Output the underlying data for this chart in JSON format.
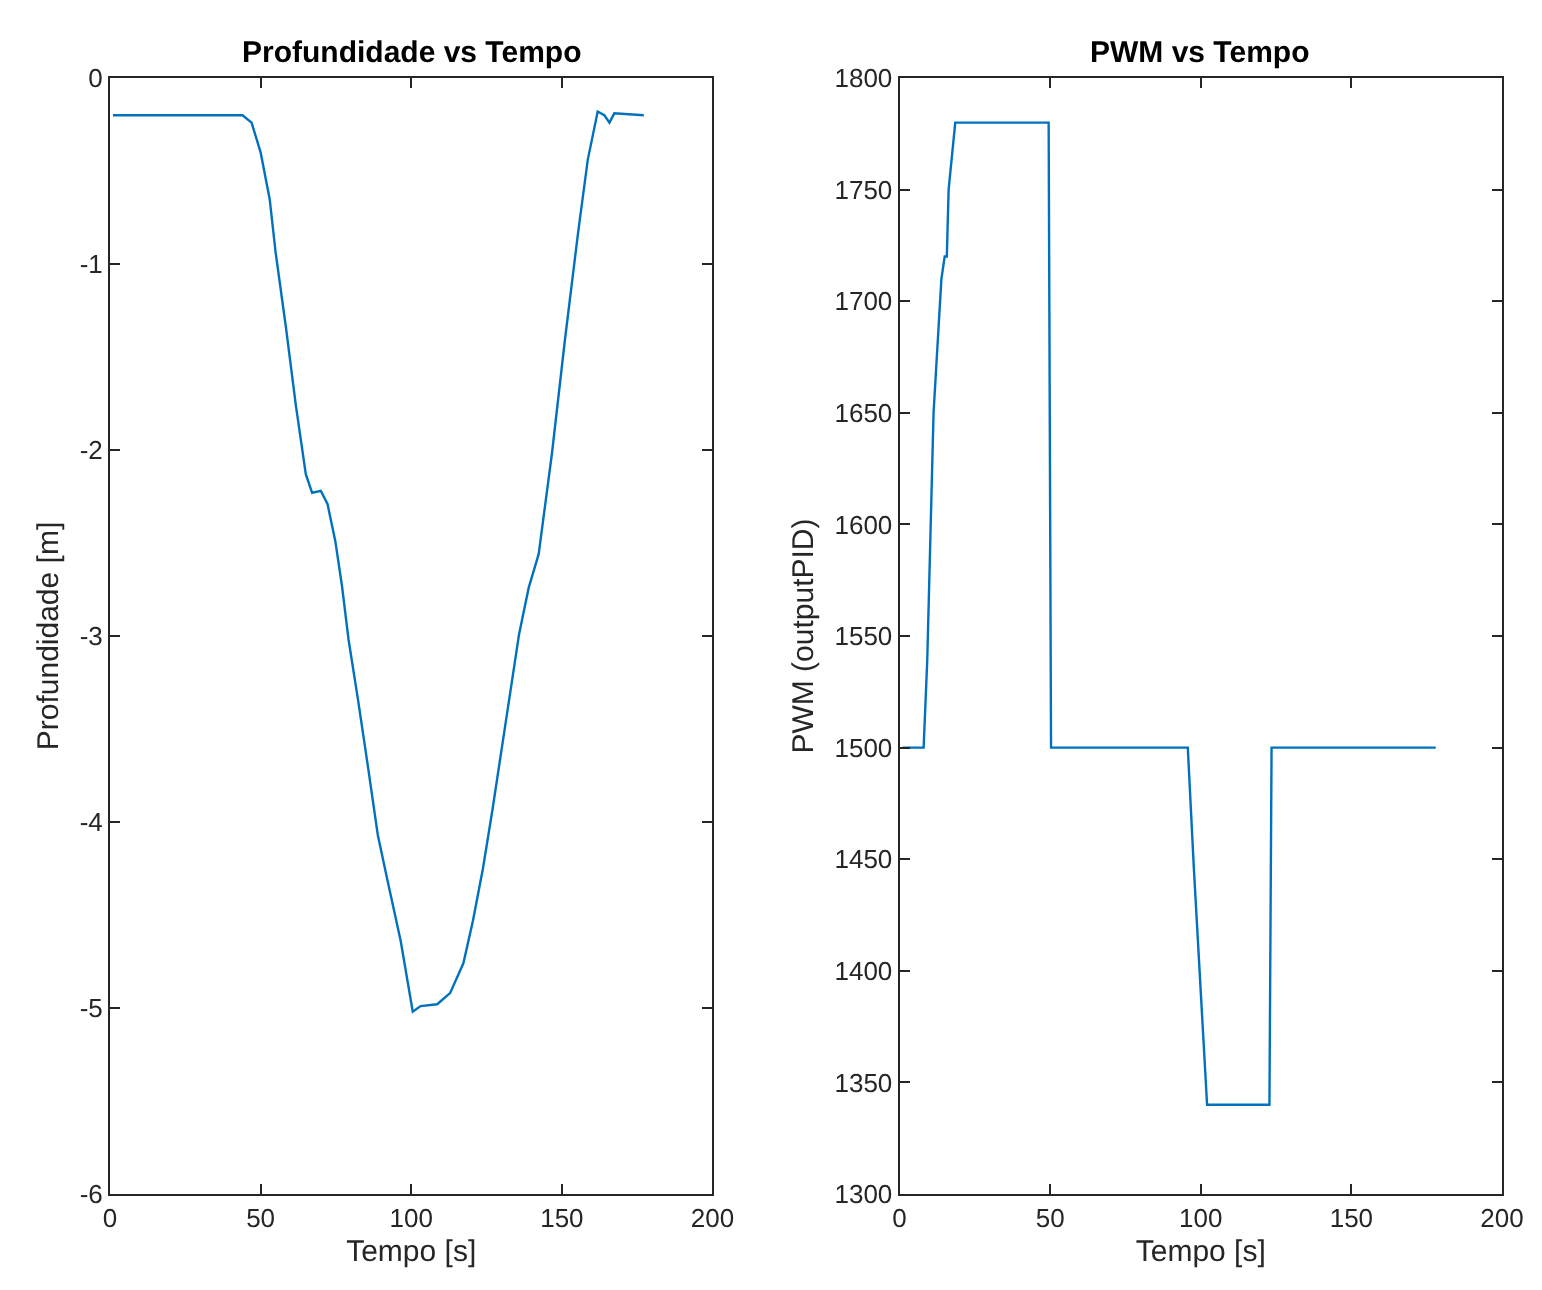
{
  "chart_data": [
    {
      "type": "line",
      "title": "Profundidade vs Tempo",
      "xlabel": "Tempo [s]",
      "ylabel": "Profundidade [m]",
      "color": "#0072bd",
      "xlim": [
        0,
        200
      ],
      "ylim": [
        -6,
        0
      ],
      "xticks": [
        0,
        50,
        100,
        150,
        200
      ],
      "yticks": [
        -6,
        -5,
        -4,
        -3,
        -2,
        -1,
        0
      ],
      "x": [
        1,
        44,
        47,
        50,
        53,
        55,
        58.4,
        61.7,
        65,
        67.1,
        70,
        72.2,
        74.8,
        77,
        79.2,
        82.4,
        85.7,
        88.9,
        92.2,
        96.5,
        100.5,
        103.1,
        108.6,
        112.9,
        117.3,
        120.5,
        123.8,
        127,
        131.4,
        135.8,
        139,
        142.3,
        146.7,
        151,
        155.4,
        158.6,
        161.9,
        164.1,
        165.8,
        167.4,
        177.2
      ],
      "values": [
        -0.2,
        -0.2,
        -0.24,
        -0.4,
        -0.65,
        -0.94,
        -1.34,
        -1.76,
        -2.13,
        -2.23,
        -2.22,
        -2.29,
        -2.49,
        -2.73,
        -3.02,
        -3.35,
        -3.71,
        -4.07,
        -4.32,
        -4.64,
        -5.02,
        -4.99,
        -4.98,
        -4.92,
        -4.76,
        -4.53,
        -4.25,
        -3.93,
        -3.46,
        -2.99,
        -2.74,
        -2.56,
        -2.02,
        -1.41,
        -0.83,
        -0.44,
        -0.18,
        -0.2,
        -0.24,
        -0.19,
        -0.2
      ]
    },
    {
      "type": "line",
      "title": "PWM vs Tempo",
      "xlabel": "Tempo [s]",
      "ylabel": "PWM (outputPID)",
      "color": "#0072bd",
      "xlim": [
        0,
        200
      ],
      "ylim": [
        1300,
        1800
      ],
      "xticks": [
        0,
        50,
        100,
        150,
        200
      ],
      "yticks": [
        1300,
        1350,
        1400,
        1450,
        1500,
        1550,
        1600,
        1650,
        1700,
        1750,
        1800
      ],
      "x": [
        1,
        8,
        9.2,
        11.3,
        13.9,
        15,
        15.7,
        16.3,
        18.5,
        49.5,
        50.3,
        95.7,
        97.7,
        102.1,
        122.8,
        123.5,
        178
      ],
      "values": [
        1500,
        1500,
        1539,
        1650,
        1710,
        1720,
        1720,
        1750,
        1780,
        1780,
        1500,
        1500,
        1446,
        1340,
        1340,
        1500,
        1500
      ]
    }
  ]
}
